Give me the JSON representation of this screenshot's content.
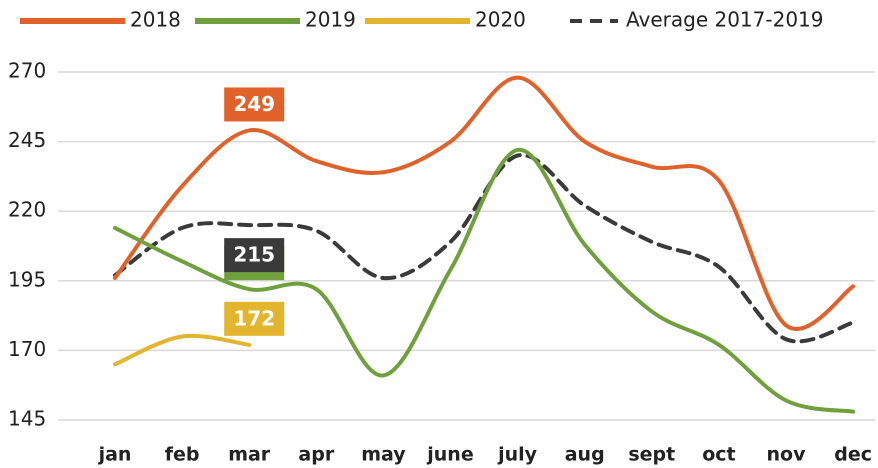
{
  "chart_data": {
    "type": "line",
    "categories": [
      "jan",
      "feb",
      "mar",
      "apr",
      "may",
      "june",
      "july",
      "aug",
      "sept",
      "oct",
      "nov",
      "dec"
    ],
    "series": [
      {
        "name": "2018",
        "color": "#e0622a",
        "values": [
          196,
          229,
          249,
          238,
          234,
          245,
          268,
          245,
          236,
          231,
          179,
          193
        ]
      },
      {
        "name": "2019",
        "color": "#70a03d",
        "values": [
          214,
          202,
          192,
          192,
          161,
          199,
          242,
          208,
          184,
          172,
          152,
          148
        ]
      },
      {
        "name": "2020",
        "color": "#e3b52e",
        "values": [
          165,
          175,
          172,
          null,
          null,
          null,
          null,
          null,
          null,
          null,
          null,
          null
        ]
      },
      {
        "name": "Average 2017-2019",
        "color": "#3a3a3a",
        "dashed": true,
        "values": [
          197,
          214,
          215,
          213,
          196,
          209,
          240,
          222,
          209,
          200,
          174,
          180
        ]
      }
    ],
    "ylim": [
      145,
      270
    ],
    "yticks": [
      145,
      170,
      195,
      220,
      245,
      270
    ],
    "grid": true,
    "legend": "top"
  }
}
